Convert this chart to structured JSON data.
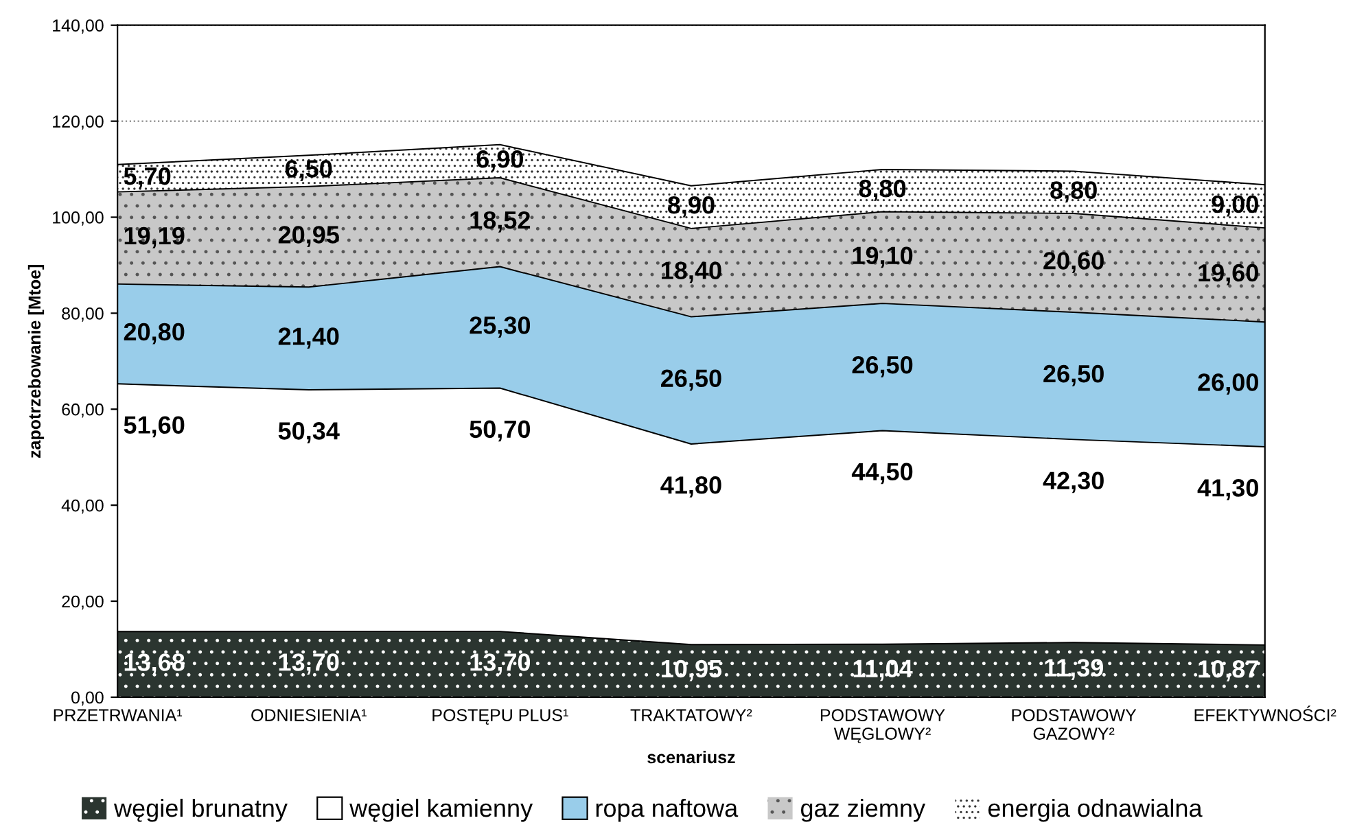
{
  "chart_data": {
    "type": "area",
    "stacked": true,
    "xlabel": "scenariusz",
    "ylabel": "zapotrzebowanie [Mtoe]",
    "categories": [
      "PRZETRWANIA¹",
      "ODNIESIENIA¹",
      "POSTĘPU PLUS¹",
      "TRAKTATOWY²",
      "PODSTAWOWY\nWĘGLOWY²",
      "PODSTAWOWY\nGAZOWY²",
      "EFEKTYWNOŚCI²"
    ],
    "series": [
      {
        "name": "węgiel brunatny",
        "color": "#2b3530",
        "values": [
          13.68,
          13.7,
          13.7,
          10.95,
          11.04,
          11.39,
          10.87
        ],
        "value_labels": [
          "13,68",
          "13,70",
          "13,70",
          "10,95",
          "11,04",
          "11,39",
          "10,87"
        ]
      },
      {
        "name": "węgiel kamienny",
        "color": "#ffffff",
        "values": [
          51.6,
          50.34,
          50.7,
          41.8,
          44.5,
          42.3,
          41.3
        ],
        "value_labels": [
          "51,60",
          "50,34",
          "50,70",
          "41,80",
          "44,50",
          "42,30",
          "41,30"
        ]
      },
      {
        "name": "ropa naftowa",
        "color": "#99cdea",
        "values": [
          20.8,
          21.4,
          25.3,
          26.5,
          26.5,
          26.5,
          26.0
        ],
        "value_labels": [
          "20,80",
          "21,40",
          "25,30",
          "26,50",
          "26,50",
          "26,50",
          "26,00"
        ]
      },
      {
        "name": "gaz ziemny",
        "color": "#c8c8c8",
        "values": [
          19.19,
          20.95,
          18.52,
          18.4,
          19.1,
          20.6,
          19.6
        ],
        "value_labels": [
          "19,19",
          "20,95",
          "18,52",
          "18,40",
          "19,10",
          "20,60",
          "19,60"
        ]
      },
      {
        "name": "energia odnawialna",
        "color": "#ffffff",
        "values": [
          5.7,
          6.5,
          6.9,
          8.9,
          8.8,
          8.8,
          9.0
        ],
        "value_labels": [
          "5,70",
          "6,50",
          "6,90",
          "8,90",
          "8,80",
          "8,80",
          "9,00"
        ]
      }
    ],
    "ylim": [
      0,
      140
    ],
    "yticks": [
      {
        "value": 0,
        "label": "0,00"
      },
      {
        "value": 20,
        "label": "20,00"
      },
      {
        "value": 40,
        "label": "40,00"
      },
      {
        "value": 60,
        "label": "60,00"
      },
      {
        "value": 80,
        "label": "80,00"
      },
      {
        "value": 100,
        "label": "100,00"
      },
      {
        "value": 120,
        "label": "120,00"
      },
      {
        "value": 140,
        "label": "140,00"
      }
    ],
    "grid": "y",
    "legend": "bottom"
  }
}
